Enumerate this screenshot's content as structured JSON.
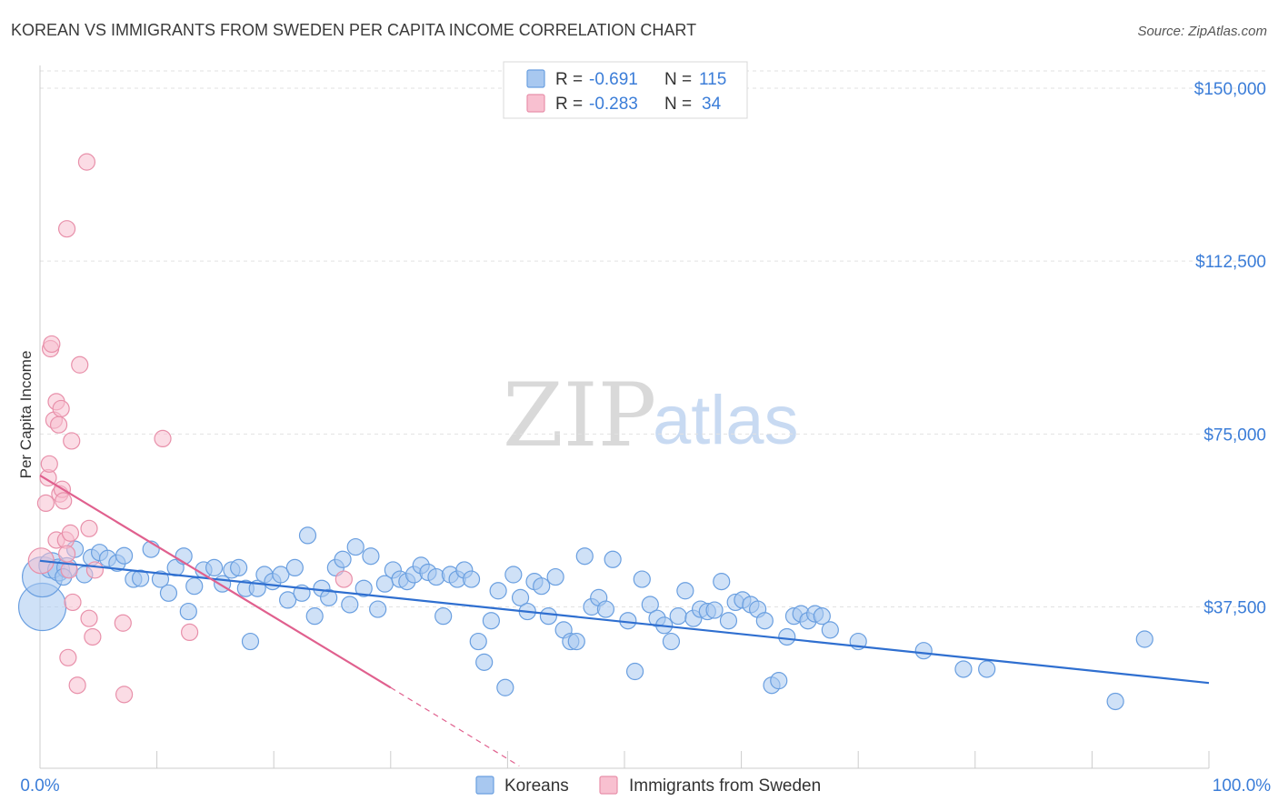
{
  "header": {
    "title": "KOREAN VS IMMIGRANTS FROM SWEDEN PER CAPITA INCOME CORRELATION CHART",
    "source": "Source: ZipAtlas.com"
  },
  "watermark": {
    "zip": "ZIP",
    "atlas": "atlas"
  },
  "stats_legend": {
    "rows": [
      {
        "r_label": "R =",
        "r_value": "-0.691",
        "n_label": "N =",
        "n_value": "115",
        "color": "#a8c8f0",
        "stroke": "#6a9fe0"
      },
      {
        "r_label": "R =",
        "r_value": "-0.283",
        "n_label": "N =",
        "n_value": "34",
        "color": "#f8c0d0",
        "stroke": "#e890aa"
      }
    ]
  },
  "bottom_legend": {
    "items": [
      {
        "label": "Koreans",
        "color": "#a8c8f0",
        "stroke": "#6a9fe0"
      },
      {
        "label": "Immigrants from Sweden",
        "color": "#f8c0d0",
        "stroke": "#e890aa"
      }
    ]
  },
  "chart_data": {
    "type": "scatter",
    "title": "KOREAN VS IMMIGRANTS FROM SWEDEN PER CAPITA INCOME CORRELATION CHART",
    "ylabel": "Per Capita Income",
    "xlabel": "",
    "xlim": [
      0,
      100
    ],
    "ylim": [
      0,
      155000
    ],
    "x_tick_labels": [
      "0.0%",
      "100.0%"
    ],
    "y_ticks": [
      {
        "value": 37500,
        "label": "$37,500"
      },
      {
        "value": 75000,
        "label": "$75,000"
      },
      {
        "value": 112500,
        "label": "$112,500"
      },
      {
        "value": 150000,
        "label": "$150,000"
      }
    ],
    "grid": true,
    "legend_position": "bottom",
    "series": [
      {
        "name": "Koreans",
        "color": "#a8c8f0",
        "stroke": "#6a9fe0",
        "line_color": "#2f6fd0",
        "trend": {
          "x": [
            0,
            100
          ],
          "y": [
            47500,
            21000
          ]
        },
        "points": [
          [
            0.2,
            37500,
            26
          ],
          [
            0.2,
            44000,
            22
          ],
          [
            1.0,
            46500,
            14
          ],
          [
            1.6,
            45500,
            12
          ],
          [
            2.3,
            46000,
            11
          ],
          [
            3.0,
            50000,
            9
          ],
          [
            3.8,
            44500,
            9
          ],
          [
            4.4,
            48200,
            9
          ],
          [
            5.1,
            49300,
            9
          ],
          [
            5.8,
            48000,
            9
          ],
          [
            6.6,
            47000,
            9
          ],
          [
            7.2,
            48600,
            9
          ],
          [
            8.0,
            43500,
            9
          ],
          [
            8.6,
            43700,
            9
          ],
          [
            9.5,
            50000,
            9
          ],
          [
            10.3,
            43500,
            9
          ],
          [
            11.0,
            40500,
            9
          ],
          [
            11.6,
            46000,
            9
          ],
          [
            12.3,
            48500,
            9
          ],
          [
            12.7,
            36500,
            9
          ],
          [
            13.2,
            42000,
            9
          ],
          [
            14.0,
            45500,
            9
          ],
          [
            14.9,
            46000,
            9
          ],
          [
            15.6,
            42500,
            9
          ],
          [
            16.4,
            45500,
            9
          ],
          [
            17.0,
            46000,
            9
          ],
          [
            17.6,
            41500,
            9
          ],
          [
            18.0,
            30000,
            9
          ],
          [
            18.6,
            41500,
            9
          ],
          [
            19.2,
            44500,
            9
          ],
          [
            19.9,
            43000,
            9
          ],
          [
            20.6,
            44500,
            9
          ],
          [
            21.2,
            39000,
            9
          ],
          [
            21.8,
            46000,
            9
          ],
          [
            22.4,
            40500,
            9
          ],
          [
            22.9,
            53000,
            9
          ],
          [
            23.5,
            35500,
            9
          ],
          [
            24.1,
            41500,
            9
          ],
          [
            24.7,
            39500,
            9
          ],
          [
            25.3,
            46000,
            9
          ],
          [
            25.9,
            47800,
            9
          ],
          [
            26.5,
            38000,
            9
          ],
          [
            27.0,
            50500,
            9
          ],
          [
            27.7,
            41500,
            9
          ],
          [
            28.3,
            48500,
            9
          ],
          [
            28.9,
            37000,
            9
          ],
          [
            29.5,
            42500,
            9
          ],
          [
            30.2,
            45500,
            9
          ],
          [
            30.8,
            43500,
            9
          ],
          [
            31.4,
            43000,
            9
          ],
          [
            32.0,
            44500,
            9
          ],
          [
            32.6,
            46500,
            9
          ],
          [
            33.2,
            45000,
            9
          ],
          [
            33.9,
            44000,
            9
          ],
          [
            34.5,
            35500,
            9
          ],
          [
            35.1,
            44500,
            9
          ],
          [
            35.7,
            43500,
            9
          ],
          [
            36.3,
            45500,
            9
          ],
          [
            36.9,
            43500,
            9
          ],
          [
            37.5,
            30000,
            9
          ],
          [
            38.0,
            25500,
            9
          ],
          [
            38.6,
            34500,
            9
          ],
          [
            39.2,
            41000,
            9
          ],
          [
            39.8,
            20000,
            9
          ],
          [
            40.5,
            44500,
            9
          ],
          [
            41.1,
            39500,
            9
          ],
          [
            41.7,
            36500,
            9
          ],
          [
            42.3,
            43000,
            9
          ],
          [
            42.9,
            42000,
            9
          ],
          [
            43.5,
            35500,
            9
          ],
          [
            44.1,
            44000,
            9
          ],
          [
            44.8,
            32500,
            9
          ],
          [
            45.4,
            30000,
            9
          ],
          [
            45.9,
            30000,
            9
          ],
          [
            46.6,
            48500,
            9
          ],
          [
            47.2,
            37500,
            9
          ],
          [
            47.8,
            39500,
            9
          ],
          [
            48.4,
            37000,
            9
          ],
          [
            49.0,
            47800,
            9
          ],
          [
            50.3,
            34500,
            9
          ],
          [
            50.9,
            23500,
            9
          ],
          [
            51.5,
            43500,
            9
          ],
          [
            52.2,
            38000,
            9
          ],
          [
            52.8,
            35000,
            9
          ],
          [
            53.4,
            33500,
            9
          ],
          [
            54.0,
            30000,
            9
          ],
          [
            54.6,
            35500,
            9
          ],
          [
            55.2,
            41000,
            9
          ],
          [
            55.9,
            35000,
            9
          ],
          [
            56.5,
            37000,
            9
          ],
          [
            57.1,
            36500,
            9
          ],
          [
            57.7,
            36800,
            9
          ],
          [
            58.3,
            43000,
            9
          ],
          [
            58.9,
            34500,
            9
          ],
          [
            59.5,
            38500,
            9
          ],
          [
            60.1,
            39000,
            9
          ],
          [
            60.8,
            38000,
            9
          ],
          [
            61.4,
            37000,
            9
          ],
          [
            62.0,
            34500,
            9
          ],
          [
            62.6,
            20500,
            9
          ],
          [
            63.2,
            21500,
            9
          ],
          [
            63.9,
            31000,
            9
          ],
          [
            64.5,
            35500,
            9
          ],
          [
            65.1,
            36000,
            9
          ],
          [
            65.7,
            34500,
            9
          ],
          [
            66.3,
            36000,
            9
          ],
          [
            66.9,
            35500,
            9
          ],
          [
            67.6,
            32500,
            9
          ],
          [
            70.0,
            30000,
            9
          ],
          [
            75.6,
            28000,
            9
          ],
          [
            79.0,
            24000,
            9
          ],
          [
            81.0,
            24000,
            9
          ],
          [
            92.0,
            17000,
            9
          ],
          [
            94.5,
            30500,
            9
          ],
          [
            2.0,
            44000,
            9
          ]
        ]
      },
      {
        "name": "Immigrants from Sweden",
        "color": "#f8c0d0",
        "stroke": "#e890aa",
        "line_color": "#e0608e",
        "trend": {
          "x": [
            0,
            30
          ],
          "y": [
            66000,
            20000
          ]
        },
        "trend_dashed": {
          "x": [
            30,
            41
          ],
          "y": [
            20000,
            3000
          ]
        },
        "points": [
          [
            0.1,
            47500,
            14
          ],
          [
            0.5,
            60000,
            9
          ],
          [
            0.7,
            65500,
            9
          ],
          [
            0.8,
            68500,
            9
          ],
          [
            0.9,
            93500,
            9
          ],
          [
            1.0,
            94500,
            9
          ],
          [
            1.2,
            78000,
            9
          ],
          [
            1.4,
            52000,
            9
          ],
          [
            1.4,
            82000,
            9
          ],
          [
            1.6,
            77000,
            9
          ],
          [
            1.7,
            62000,
            9
          ],
          [
            1.8,
            80500,
            9
          ],
          [
            1.9,
            63000,
            9
          ],
          [
            2.0,
            60500,
            9
          ],
          [
            2.2,
            52000,
            9
          ],
          [
            2.3,
            49000,
            9
          ],
          [
            2.3,
            119500,
            9
          ],
          [
            2.4,
            26500,
            9
          ],
          [
            2.5,
            45500,
            9
          ],
          [
            2.6,
            53500,
            9
          ],
          [
            2.7,
            73500,
            9
          ],
          [
            2.8,
            38500,
            9
          ],
          [
            3.2,
            20500,
            9
          ],
          [
            3.4,
            90000,
            9
          ],
          [
            4.0,
            134000,
            9
          ],
          [
            4.2,
            54500,
            9
          ],
          [
            4.2,
            35000,
            9
          ],
          [
            4.5,
            31000,
            9
          ],
          [
            4.7,
            45500,
            9
          ],
          [
            7.1,
            34000,
            9
          ],
          [
            7.2,
            18500,
            9
          ],
          [
            10.5,
            74000,
            9
          ],
          [
            12.8,
            32000,
            9
          ],
          [
            26.0,
            43500,
            9
          ]
        ]
      }
    ]
  }
}
